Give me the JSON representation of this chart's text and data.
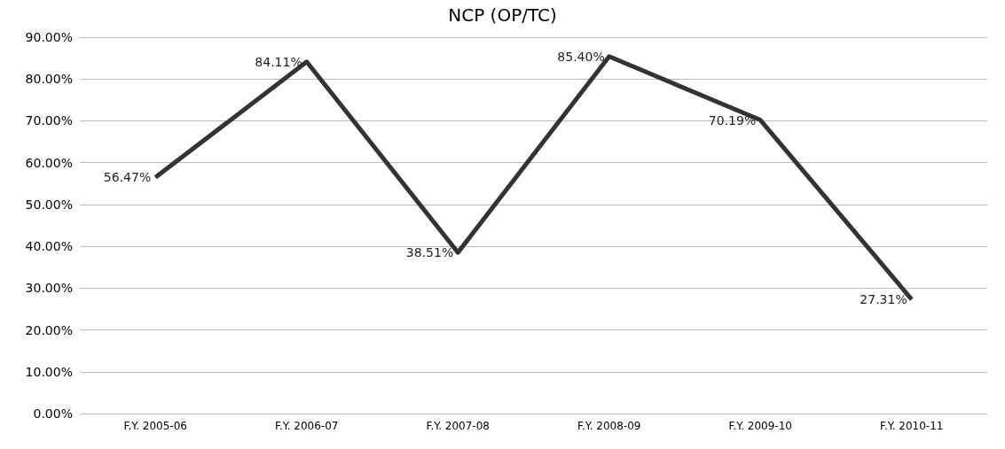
{
  "chart_data": {
    "type": "line",
    "title": "NCP (OP/TC)",
    "categories": [
      "F.Y. 2005-06",
      "F.Y. 2006-07",
      "F.Y. 2007-08",
      "F.Y. 2008-09",
      "F.Y. 2009-10",
      "F.Y. 2010-11"
    ],
    "series": [
      {
        "color": "#333333",
        "values": [
          56.47,
          84.11,
          38.51,
          85.4,
          70.19,
          27.31
        ],
        "value_labels": [
          "56.47%",
          "84.11%",
          "38.51%",
          "85.40%",
          "70.19%",
          "27.31%"
        ]
      }
    ],
    "ylim": [
      0,
      90
    ],
    "yticks": [
      {
        "value": 0,
        "label": "0.00%"
      },
      {
        "value": 10,
        "label": "10.00%"
      },
      {
        "value": 20,
        "label": "20.00%"
      },
      {
        "value": 30,
        "label": "30.00%"
      },
      {
        "value": 40,
        "label": "40.00%"
      },
      {
        "value": 50,
        "label": "50.00%"
      },
      {
        "value": 60,
        "label": "60.00%"
      },
      {
        "value": 70,
        "label": "70.00%"
      },
      {
        "value": 80,
        "label": "80.00%"
      },
      {
        "value": 90,
        "label": "90.00%"
      }
    ],
    "grid": "y",
    "marker": "none",
    "line_style": "solid"
  }
}
